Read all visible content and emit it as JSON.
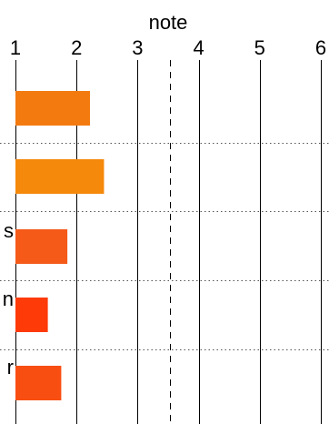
{
  "chart_data": {
    "type": "bar",
    "orientation": "horizontal",
    "title": "",
    "xlabel": "note",
    "ylabel": "",
    "xlim": [
      1,
      6
    ],
    "x_ticks": [
      "1",
      "2",
      "3",
      "4",
      "5",
      "6"
    ],
    "grid": true,
    "reference_line": {
      "value": 3.53,
      "style": "dashed"
    },
    "categories": [
      "",
      "",
      "s",
      "n",
      "r"
    ],
    "values": [
      2.22,
      2.45,
      1.85,
      1.53,
      1.75
    ],
    "colors": [
      "#f27a0f",
      "#f5890b",
      "#f55a19",
      "#fd3a08",
      "#f84e12"
    ]
  }
}
